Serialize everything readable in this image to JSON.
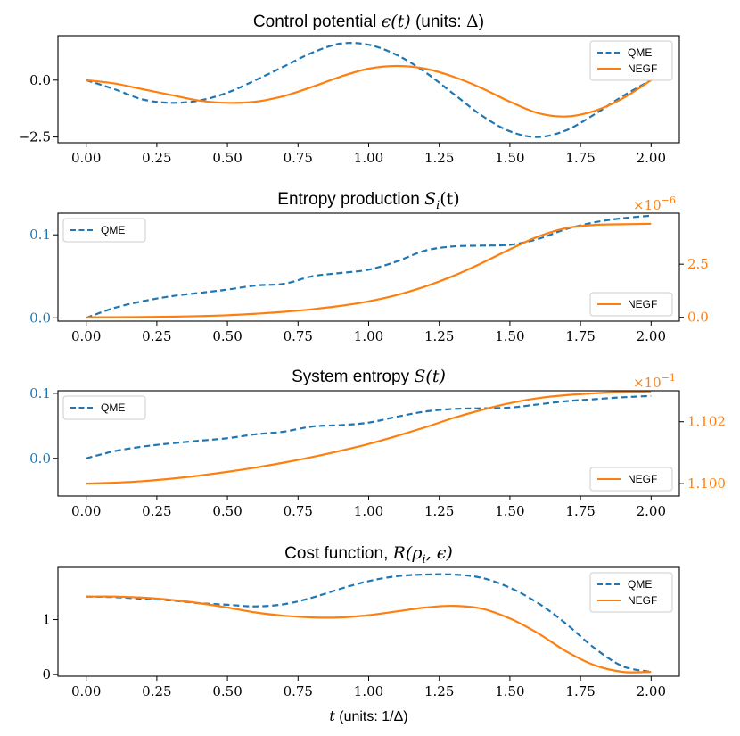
{
  "colors": {
    "qme": "#1f77b4",
    "negf": "#ff7f0e",
    "axis": "#000000"
  },
  "chart_data": [
    {
      "type": "line",
      "title": "Control potential ϵ(t) (units: Δ)",
      "xlim": [
        -0.1,
        2.1
      ],
      "ylim": [
        -2.75,
        1.95
      ],
      "xticks": [
        "0.00",
        "0.25",
        "0.50",
        "0.75",
        "1.00",
        "1.25",
        "1.50",
        "1.75",
        "2.00"
      ],
      "yticks": [
        {
          "value": 0.0,
          "label": "0.0"
        },
        {
          "value": -2.5,
          "label": "−2.5"
        }
      ],
      "legend": "top-right",
      "series": [
        {
          "name": "QME",
          "style": "dashed",
          "x": [
            0,
            0.1,
            0.2,
            0.3,
            0.4,
            0.5,
            0.6,
            0.7,
            0.8,
            0.9,
            1.0,
            1.1,
            1.2,
            1.3,
            1.4,
            1.5,
            1.6,
            1.7,
            1.8,
            1.9,
            2.0
          ],
          "y": [
            0.0,
            -0.4,
            -0.85,
            -1.0,
            -0.9,
            -0.55,
            0.0,
            0.6,
            1.2,
            1.6,
            1.55,
            1.1,
            0.35,
            -0.6,
            -1.55,
            -2.25,
            -2.5,
            -2.2,
            -1.5,
            -0.7,
            0.0
          ]
        },
        {
          "name": "NEGF",
          "style": "solid",
          "x": [
            0,
            0.1,
            0.2,
            0.3,
            0.4,
            0.5,
            0.6,
            0.7,
            0.8,
            0.9,
            1.0,
            1.1,
            1.2,
            1.3,
            1.4,
            1.5,
            1.6,
            1.7,
            1.8,
            1.9,
            2.0
          ],
          "y": [
            0.0,
            -0.15,
            -0.4,
            -0.65,
            -0.9,
            -1.0,
            -0.95,
            -0.7,
            -0.3,
            0.15,
            0.5,
            0.62,
            0.5,
            0.15,
            -0.35,
            -0.95,
            -1.45,
            -1.6,
            -1.35,
            -0.8,
            0.0
          ]
        }
      ]
    },
    {
      "type": "line",
      "title": "Entropy production S_i(t)",
      "xlim": [
        -0.1,
        2.1
      ],
      "ylim": [
        -0.004,
        0.126
      ],
      "y2lim": [
        -0.18,
        4.9
      ],
      "y2_multiplier": "×10",
      "y2_exponent": "−6",
      "xticks": [
        "0.00",
        "0.25",
        "0.50",
        "0.75",
        "1.00",
        "1.25",
        "1.50",
        "1.75",
        "2.00"
      ],
      "yticks": [
        {
          "value": 0.0,
          "label": "0.0"
        },
        {
          "value": 0.1,
          "label": "0.1"
        }
      ],
      "y2ticks": [
        {
          "value": 0.0,
          "label": "0.0"
        },
        {
          "value": 2.5,
          "label": "2.5"
        }
      ],
      "series": [
        {
          "name": "QME",
          "axis": "left",
          "style": "dashed",
          "legend": "top-left",
          "x": [
            0,
            0.1,
            0.2,
            0.3,
            0.4,
            0.5,
            0.6,
            0.7,
            0.8,
            0.9,
            1.0,
            1.1,
            1.2,
            1.3,
            1.4,
            1.5,
            1.6,
            1.7,
            1.8,
            1.9,
            2.0
          ],
          "y": [
            0.0,
            0.012,
            0.02,
            0.026,
            0.03,
            0.034,
            0.039,
            0.041,
            0.05,
            0.054,
            0.058,
            0.068,
            0.081,
            0.086,
            0.087,
            0.088,
            0.095,
            0.107,
            0.115,
            0.12,
            0.123
          ]
        },
        {
          "name": "NEGF",
          "axis": "right",
          "style": "solid",
          "legend": "bottom-right",
          "x": [
            0,
            0.1,
            0.2,
            0.3,
            0.4,
            0.5,
            0.6,
            0.7,
            0.8,
            0.9,
            1.0,
            1.1,
            1.2,
            1.3,
            1.4,
            1.5,
            1.6,
            1.7,
            1.8,
            1.9,
            2.0
          ],
          "y": [
            0.0,
            0.005,
            0.012,
            0.03,
            0.06,
            0.1,
            0.17,
            0.26,
            0.38,
            0.54,
            0.75,
            1.05,
            1.45,
            1.95,
            2.55,
            3.2,
            3.8,
            4.2,
            4.35,
            4.38,
            4.4
          ]
        }
      ]
    },
    {
      "type": "line",
      "title": "System entropy S(t)",
      "xlim": [
        -0.1,
        2.1
      ],
      "ylim": [
        -0.058,
        0.104
      ],
      "y2lim": [
        1.0996,
        1.103
      ],
      "y2_multiplier": "×10",
      "y2_exponent": "−1",
      "xticks": [
        "0.00",
        "0.25",
        "0.50",
        "0.75",
        "1.00",
        "1.25",
        "1.50",
        "1.75",
        "2.00"
      ],
      "yticks": [
        {
          "value": 0.0,
          "label": "0.0"
        },
        {
          "value": 0.1,
          "label": "0.1"
        }
      ],
      "y2ticks": [
        {
          "value": 1.1,
          "label": "1.100"
        },
        {
          "value": 1.102,
          "label": "1.102"
        }
      ],
      "series": [
        {
          "name": "QME",
          "axis": "left",
          "style": "dashed",
          "legend": "top-left",
          "x": [
            0,
            0.1,
            0.2,
            0.3,
            0.4,
            0.5,
            0.6,
            0.7,
            0.8,
            0.9,
            1.0,
            1.1,
            1.2,
            1.3,
            1.4,
            1.5,
            1.6,
            1.7,
            1.8,
            1.9,
            2.0
          ],
          "y": [
            0.0,
            0.011,
            0.018,
            0.023,
            0.027,
            0.031,
            0.037,
            0.041,
            0.049,
            0.051,
            0.055,
            0.064,
            0.072,
            0.076,
            0.077,
            0.078,
            0.083,
            0.088,
            0.091,
            0.094,
            0.096
          ]
        },
        {
          "name": "NEGF",
          "axis": "right",
          "style": "solid",
          "legend": "bottom-right",
          "x": [
            0,
            0.1,
            0.2,
            0.3,
            0.4,
            0.5,
            0.6,
            0.7,
            0.8,
            0.9,
            1.0,
            1.1,
            1.2,
            1.3,
            1.4,
            1.5,
            1.6,
            1.7,
            1.8,
            1.9,
            2.0
          ],
          "y": [
            1.1,
            1.10003,
            1.10008,
            1.10016,
            1.10026,
            1.10038,
            1.10052,
            1.10068,
            1.10086,
            1.10106,
            1.10128,
            1.10154,
            1.10182,
            1.10212,
            1.10238,
            1.1026,
            1.10276,
            1.10286,
            1.10292,
            1.10296,
            1.10298
          ]
        }
      ]
    },
    {
      "type": "line",
      "title": "Cost function, R(ρ_i, ϵ)",
      "xlabel": "t (units: 1/Δ)",
      "xlim": [
        -0.1,
        2.1
      ],
      "ylim": [
        -0.03,
        1.95
      ],
      "xticks": [
        "0.00",
        "0.25",
        "0.50",
        "0.75",
        "1.00",
        "1.25",
        "1.50",
        "1.75",
        "2.00"
      ],
      "yticks": [
        {
          "value": 0,
          "label": "0"
        },
        {
          "value": 1,
          "label": "1"
        }
      ],
      "legend": "top-right",
      "series": [
        {
          "name": "QME",
          "style": "dashed",
          "x": [
            0,
            0.1,
            0.2,
            0.3,
            0.4,
            0.5,
            0.6,
            0.7,
            0.8,
            0.9,
            1.0,
            1.1,
            1.2,
            1.3,
            1.4,
            1.5,
            1.6,
            1.7,
            1.8,
            1.9,
            2.0
          ],
          "y": [
            1.42,
            1.41,
            1.38,
            1.35,
            1.3,
            1.27,
            1.24,
            1.28,
            1.4,
            1.56,
            1.7,
            1.79,
            1.82,
            1.82,
            1.76,
            1.58,
            1.3,
            0.92,
            0.48,
            0.15,
            0.05
          ]
        },
        {
          "name": "NEGF",
          "style": "solid",
          "x": [
            0,
            0.1,
            0.2,
            0.3,
            0.4,
            0.5,
            0.6,
            0.7,
            0.8,
            0.9,
            1.0,
            1.1,
            1.2,
            1.3,
            1.4,
            1.5,
            1.6,
            1.7,
            1.8,
            1.9,
            2.0
          ],
          "y": [
            1.42,
            1.42,
            1.4,
            1.36,
            1.3,
            1.22,
            1.13,
            1.07,
            1.04,
            1.04,
            1.08,
            1.15,
            1.22,
            1.25,
            1.2,
            1.02,
            0.75,
            0.42,
            0.17,
            0.05,
            0.05
          ]
        }
      ]
    }
  ]
}
